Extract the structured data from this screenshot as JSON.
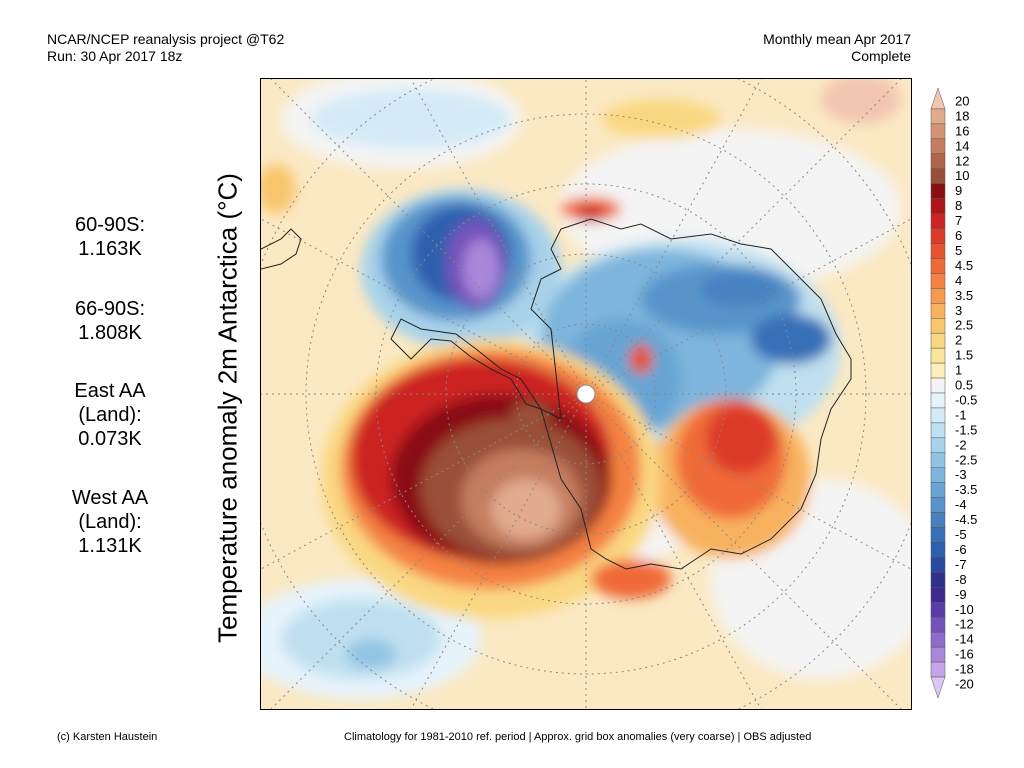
{
  "header": {
    "source": "NCAR/NCEP reanalysis project @T62",
    "run": "Run: 30 Apr 2017 18z",
    "period": "Monthly mean Apr 2017",
    "status": "Complete"
  },
  "map": {
    "variable_label": "Temperature anomaly 2m Antarctica (°C)",
    "projection": "south-polar-stereographic"
  },
  "stats": [
    {
      "name": "60-90S:",
      "value": "1.163K"
    },
    {
      "name": "66-90S:",
      "value": "1.808K"
    },
    {
      "name": "East AA (Land):",
      "line1": "East AA",
      "line2": "(Land):",
      "value": "0.073K"
    },
    {
      "name": "West AA (Land):",
      "line1": "West AA",
      "line2": "(Land):",
      "value": "1.131K"
    }
  ],
  "colorbar": {
    "labels": [
      "20",
      "18",
      "16",
      "14",
      "12",
      "10",
      "9",
      "8",
      "7",
      "6",
      "5",
      "4.5",
      "4",
      "3.5",
      "3",
      "2.5",
      "2",
      "1.5",
      "1",
      "0.5",
      "-0.5",
      "-1",
      "-1.5",
      "-2",
      "-2.5",
      "-3",
      "-3.5",
      "-4",
      "-4.5",
      "-5",
      "-6",
      "-7",
      "-8",
      "-9",
      "-10",
      "-12",
      "-14",
      "-16",
      "-18",
      "-20"
    ],
    "colors": [
      "#f2c6b0",
      "#e2ab8e",
      "#d49474",
      "#c47d5e",
      "#b0654a",
      "#9a4f38",
      "#8a0f12",
      "#b01418",
      "#cc2424",
      "#dd3a2a",
      "#e8532f",
      "#f06a38",
      "#f48242",
      "#f69a4e",
      "#f8b25e",
      "#f9c66e",
      "#fad882",
      "#fbe59a",
      "#fcefbb",
      "#f4f4f4",
      "#e6f3fb",
      "#d4ebf7",
      "#bfe0f0",
      "#a8d2ea",
      "#92c4e3",
      "#7db5dc",
      "#68a5d4",
      "#5694cb",
      "#4682c2",
      "#3870b8",
      "#2e5eae",
      "#2a4aa0",
      "#30308c",
      "#3d2a8e",
      "#5a3ca8",
      "#7452bb",
      "#8e6ccb",
      "#a988da",
      "#c3a5e8",
      "#dcc6f4"
    ]
  },
  "footer": {
    "credit": "(c) Karsten Haustein",
    "note": "Climatology for 1981-2010 ref. period | Approx. grid box anomalies (very coarse) | OBS adjusted"
  }
}
